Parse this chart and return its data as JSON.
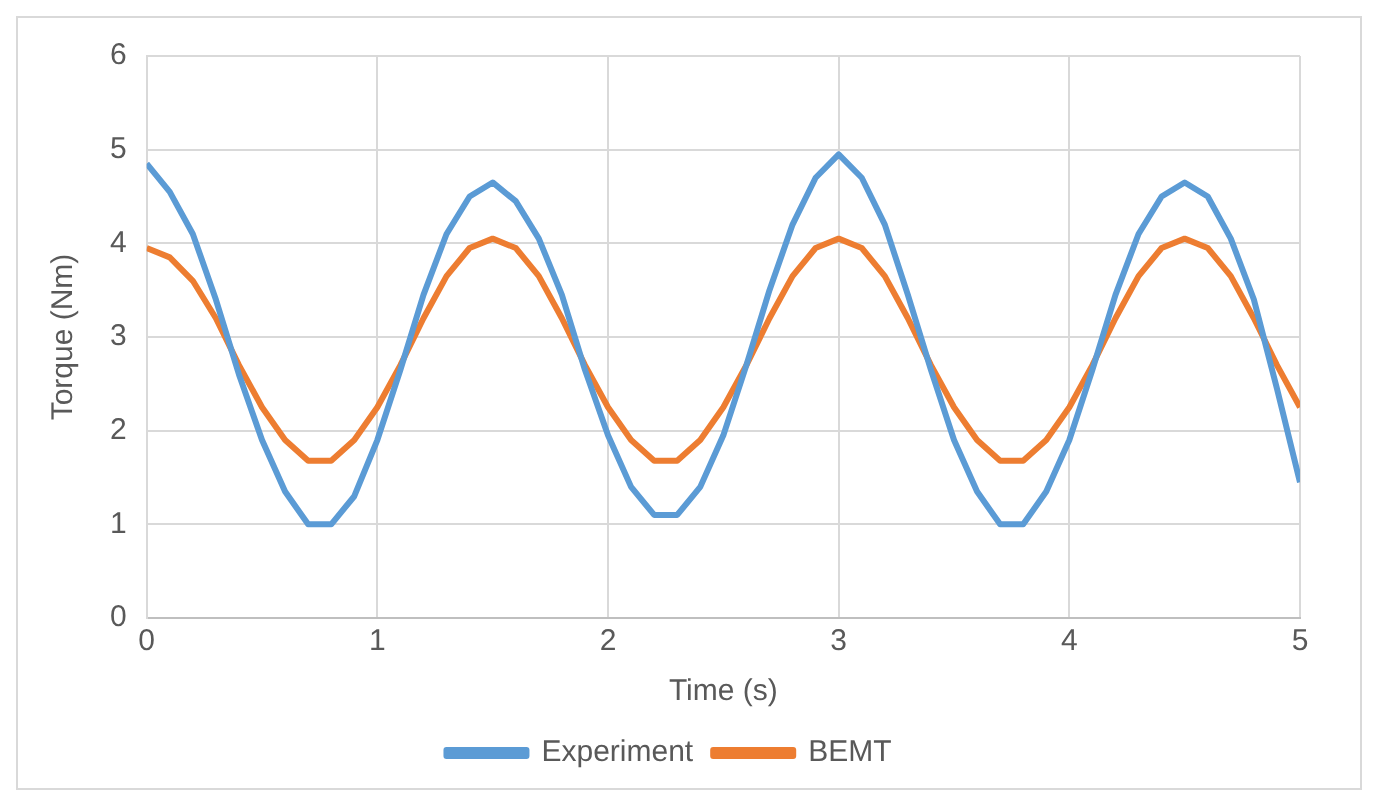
{
  "chart_data": {
    "type": "line",
    "xlabel": "Time (s)",
    "ylabel": "Torque (Nm)",
    "x": [
      0,
      0.1,
      0.2,
      0.3,
      0.4,
      0.5,
      0.6,
      0.7,
      0.8,
      0.9,
      1,
      1.1,
      1.2,
      1.3,
      1.4,
      1.5,
      1.6,
      1.7,
      1.8,
      1.9,
      2,
      2.1,
      2.2,
      2.3,
      2.4,
      2.5,
      2.6,
      2.7,
      2.8,
      2.9,
      3,
      3.1,
      3.2,
      3.3,
      3.4,
      3.5,
      3.6,
      3.7,
      3.8,
      3.9,
      4,
      4.1,
      4.2,
      4.3,
      4.4,
      4.5,
      4.6,
      4.7,
      4.8,
      4.9,
      5
    ],
    "series": [
      {
        "name": "Experiment",
        "color": "#5b9bd5",
        "values": [
          4.85,
          4.55,
          4.1,
          3.4,
          2.6,
          1.9,
          1.35,
          1.0,
          1.0,
          1.3,
          1.9,
          2.65,
          3.45,
          4.1,
          4.5,
          4.65,
          4.45,
          4.05,
          3.45,
          2.65,
          1.95,
          1.4,
          1.1,
          1.1,
          1.4,
          1.95,
          2.7,
          3.5,
          4.2,
          4.7,
          4.95,
          4.7,
          4.2,
          3.45,
          2.65,
          1.9,
          1.35,
          1.0,
          1.0,
          1.35,
          1.9,
          2.65,
          3.45,
          4.1,
          4.5,
          4.65,
          4.5,
          4.05,
          3.4,
          2.45,
          1.45
        ]
      },
      {
        "name": "BEMT",
        "color": "#ed7d31",
        "values": [
          3.95,
          3.85,
          3.6,
          3.2,
          2.7,
          2.25,
          1.9,
          1.68,
          1.68,
          1.9,
          2.25,
          2.7,
          3.2,
          3.65,
          3.95,
          4.05,
          3.95,
          3.65,
          3.2,
          2.7,
          2.25,
          1.9,
          1.68,
          1.68,
          1.9,
          2.25,
          2.7,
          3.2,
          3.65,
          3.95,
          4.05,
          3.95,
          3.65,
          3.2,
          2.7,
          2.25,
          1.9,
          1.68,
          1.68,
          1.9,
          2.25,
          2.7,
          3.2,
          3.65,
          3.95,
          4.05,
          3.95,
          3.65,
          3.2,
          2.7,
          2.25
        ]
      }
    ],
    "xlim": [
      0,
      5
    ],
    "xticks": [
      0,
      1,
      2,
      3,
      4,
      5
    ],
    "ylim": [
      0,
      6
    ],
    "yticks": [
      0,
      1,
      2,
      3,
      4,
      5,
      6
    ],
    "grid": true,
    "legend": "bottom",
    "marker": "none",
    "line_style": "solid"
  }
}
